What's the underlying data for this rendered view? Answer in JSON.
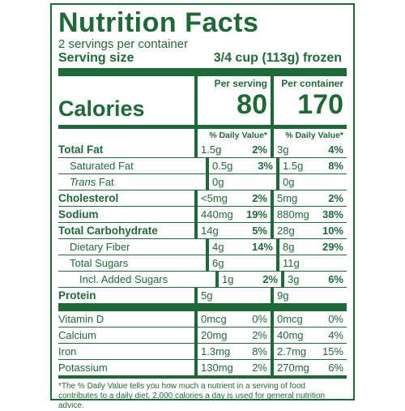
{
  "label": {
    "title": "Nutrition Facts",
    "servings": "2 servings per container",
    "serving_size_label": "Serving size",
    "serving_size_value": "3/4 cup (113g) frozen",
    "per_serving_header": "Per serving",
    "per_container_header": "Per container",
    "calories_label": "Calories",
    "calories_serving": "80",
    "calories_container": "170",
    "dv_header": "% Daily Value*",
    "nutrients": [
      {
        "name": "Total Fat",
        "s_amt": "1.5g",
        "s_pct": "2%",
        "c_amt": "3g",
        "c_pct": "4%"
      },
      {
        "name": "Saturated Fat",
        "s_amt": "0.5g",
        "s_pct": "3%",
        "c_amt": "1.5g",
        "c_pct": "8%"
      },
      {
        "name": "Trans",
        "name_suffix": " Fat",
        "s_amt": "0g",
        "s_pct": "",
        "c_amt": "0g",
        "c_pct": ""
      },
      {
        "name": "Cholesterol",
        "s_amt": "<5mg",
        "s_pct": "2%",
        "c_amt": "5mg",
        "c_pct": "2%"
      },
      {
        "name": "Sodium",
        "s_amt": "440mg",
        "s_pct": "19%",
        "c_amt": "880mg",
        "c_pct": "38%"
      },
      {
        "name": "Total Carbohydrate",
        "s_amt": "14g",
        "s_pct": "5%",
        "c_amt": "28g",
        "c_pct": "10%"
      },
      {
        "name": "Dietary Fiber",
        "s_amt": "4g",
        "s_pct": "14%",
        "c_amt": "8g",
        "c_pct": "29%"
      },
      {
        "name": "Total Sugars",
        "s_amt": "6g",
        "s_pct": "",
        "c_amt": "11g",
        "c_pct": ""
      },
      {
        "name": "Incl. Added Sugars",
        "s_amt": "1g",
        "s_pct": "2%",
        "c_amt": "3g",
        "c_pct": "6%"
      },
      {
        "name": "Protein",
        "s_amt": "5g",
        "s_pct": "",
        "c_amt": "9g",
        "c_pct": ""
      }
    ],
    "vitamins": [
      {
        "name": "Vitamin D",
        "s_amt": "0mcg",
        "s_pct": "0%",
        "c_amt": "0mcg",
        "c_pct": "0%"
      },
      {
        "name": "Calcium",
        "s_amt": "20mg",
        "s_pct": "2%",
        "c_amt": "40mg",
        "c_pct": "4%"
      },
      {
        "name": "Iron",
        "s_amt": "1.3mg",
        "s_pct": "8%",
        "c_amt": "2.7mg",
        "c_pct": "15%"
      },
      {
        "name": "Potassium",
        "s_amt": "130mg",
        "s_pct": "2%",
        "c_amt": "270mg",
        "c_pct": "6%"
      }
    ],
    "footnote": "*The % Daily Value tells you how much a nutrient in a serving of food contributes to a daily diet. 2,000 calories a day is used for general nutrition advice.",
    "accent_color": "#1e6a36"
  }
}
